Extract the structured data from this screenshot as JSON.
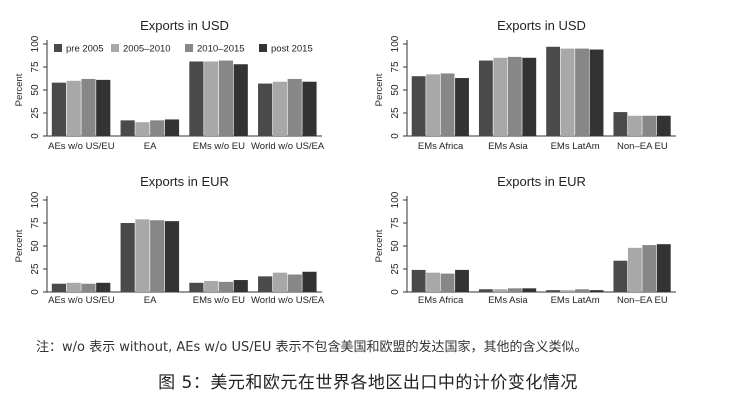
{
  "chart_data": [
    {
      "type": "bar",
      "title": "Exports in USD",
      "ylabel": "Percent",
      "ylim": [
        0,
        100
      ],
      "yticks": [
        0,
        25,
        50,
        75,
        100
      ],
      "legend": "top-left",
      "categories": [
        "AEs w/o US/EU",
        "EA",
        "EMs w/o EU",
        "World w/o US/EA"
      ],
      "series": [
        {
          "name": "pre 2005",
          "values": [
            58,
            17,
            81,
            57
          ]
        },
        {
          "name": "2005–2010",
          "values": [
            60,
            15,
            81,
            59
          ]
        },
        {
          "name": "2010–2015",
          "values": [
            62,
            17,
            82,
            62
          ]
        },
        {
          "name": "post 2015",
          "values": [
            61,
            18,
            78,
            59
          ]
        }
      ]
    },
    {
      "type": "bar",
      "title": "Exports in USD",
      "ylabel": "Percent",
      "ylim": [
        0,
        100
      ],
      "yticks": [
        0,
        25,
        50,
        75,
        100
      ],
      "categories": [
        "EMs Africa",
        "EMs Asia",
        "EMs LatAm",
        "Non–EA EU"
      ],
      "series": [
        {
          "name": "pre 2005",
          "values": [
            65,
            82,
            97,
            26
          ]
        },
        {
          "name": "2005–2010",
          "values": [
            67,
            85,
            95,
            22
          ]
        },
        {
          "name": "2010–2015",
          "values": [
            68,
            86,
            95,
            22
          ]
        },
        {
          "name": "post 2015",
          "values": [
            63,
            85,
            94,
            22
          ]
        }
      ]
    },
    {
      "type": "bar",
      "title": "Exports in EUR",
      "ylabel": "Percent",
      "ylim": [
        0,
        100
      ],
      "yticks": [
        0,
        25,
        50,
        75,
        100
      ],
      "categories": [
        "AEs w/o US/EU",
        "EA",
        "EMs w/o EU",
        "World w/o US/EA"
      ],
      "series": [
        {
          "name": "pre 2005",
          "values": [
            9,
            75,
            10,
            17
          ]
        },
        {
          "name": "2005–2010",
          "values": [
            10,
            79,
            12,
            21
          ]
        },
        {
          "name": "2010–2015",
          "values": [
            9,
            78,
            11,
            19
          ]
        },
        {
          "name": "post 2015",
          "values": [
            10,
            77,
            13,
            22
          ]
        }
      ]
    },
    {
      "type": "bar",
      "title": "Exports in EUR",
      "ylabel": "Percent",
      "ylim": [
        0,
        100
      ],
      "yticks": [
        0,
        25,
        50,
        75,
        100
      ],
      "categories": [
        "EMs Africa",
        "EMs Asia",
        "EMs LatAm",
        "Non–EA EU"
      ],
      "series": [
        {
          "name": "pre 2005",
          "values": [
            24,
            3,
            2,
            34
          ]
        },
        {
          "name": "2005–2010",
          "values": [
            21,
            3,
            2,
            48
          ]
        },
        {
          "name": "2010–2015",
          "values": [
            20,
            4,
            3,
            51
          ]
        },
        {
          "name": "post 2015",
          "values": [
            24,
            4,
            2,
            52
          ]
        }
      ]
    }
  ],
  "colors": [
    "#4a4a4a",
    "#a8a8a8",
    "#878787",
    "#333333"
  ],
  "note": "注：w/o 表示 without, AEs w/o US/EU 表示不包含美国和欧盟的发达国家，其他的含义类似。",
  "caption": "图 5：美元和欧元在世界各地区出口中的计价变化情况"
}
